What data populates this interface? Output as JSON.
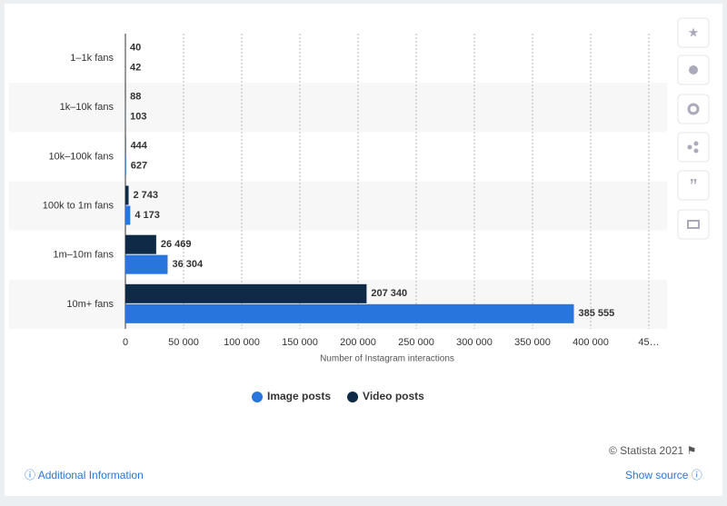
{
  "chart_data": {
    "type": "hbar",
    "categories": [
      "1–1k fans",
      "1k–10k fans",
      "10k–100k fans",
      "100k to 1m fans",
      "1m–10m fans",
      "10m+ fans"
    ],
    "series": [
      {
        "name": "Image posts",
        "color": "#2876dd",
        "values": [
          42,
          103,
          627,
          4173,
          36304,
          385555
        ],
        "value_labels": [
          "42",
          "103",
          "627",
          "4 173",
          "36 304",
          "385 555"
        ]
      },
      {
        "name": "Video posts",
        "color": "#0f2a46",
        "values": [
          40,
          88,
          444,
          2743,
          26469,
          207340
        ],
        "value_labels": [
          "40",
          "88",
          "444",
          "2 743",
          "26 469",
          "207 340"
        ]
      }
    ],
    "xlabel": "Number of Instagram interactions",
    "xlim": [
      0,
      450000
    ],
    "xticks": [
      0,
      {
        "value": 50000,
        "label": "50 000"
      },
      {
        "value": 100000,
        "label": "100 000"
      },
      {
        "value": 150000,
        "label": "150 000"
      },
      {
        "value": 200000,
        "label": "200 000"
      },
      {
        "value": 250000,
        "label": "250 000"
      },
      {
        "value": 300000,
        "label": "300 000"
      },
      {
        "value": 350000,
        "label": "350 000"
      },
      {
        "value": 400000,
        "label": "400 000"
      },
      {
        "value": 450000,
        "label": "45…"
      }
    ],
    "grid": true,
    "legend": "bottom"
  },
  "footer": {
    "copyright": "© Statista 2021",
    "additional": "Additional Information",
    "source": "Show source"
  }
}
